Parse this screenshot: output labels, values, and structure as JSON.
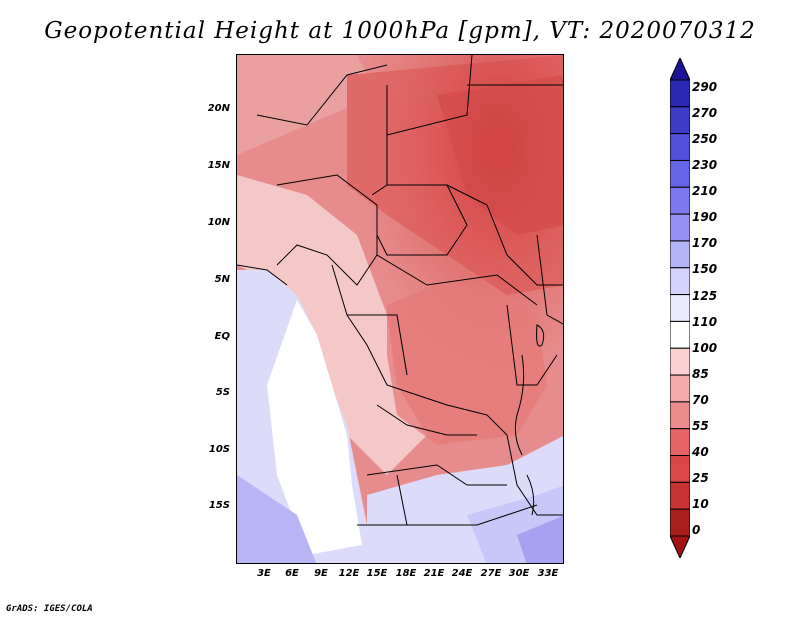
{
  "title": "Geopotential Height at 1000hPa [gpm], VT: 2020070312",
  "credit": "GrADS: IGES/COLA",
  "map": {
    "lat_ticks": [
      "20N",
      "15N",
      "10N",
      "5N",
      "EQ",
      "5S",
      "10S",
      "15S"
    ],
    "lon_ticks": [
      "3E",
      "6E",
      "9E",
      "12E",
      "15E",
      "18E",
      "21E",
      "24E",
      "27E",
      "30E",
      "33E"
    ]
  },
  "colorbar": {
    "labels": [
      "290",
      "270",
      "250",
      "230",
      "210",
      "190",
      "170",
      "150",
      "125",
      "110",
      "100",
      "85",
      "70",
      "55",
      "40",
      "25",
      "10",
      "0"
    ],
    "colors_top_to_bottom": [
      "#1e1496",
      "#2828b4",
      "#3c3cc8",
      "#5050dc",
      "#6464e6",
      "#7c78f0",
      "#9690f5",
      "#b4b4f8",
      "#d2d2fa",
      "#ebebfc",
      "#ffffff",
      "#fad2d2",
      "#f5aaaa",
      "#eb8c8c",
      "#e66464",
      "#dc4646",
      "#c83232",
      "#aa1e1e",
      "#a01414"
    ]
  }
}
